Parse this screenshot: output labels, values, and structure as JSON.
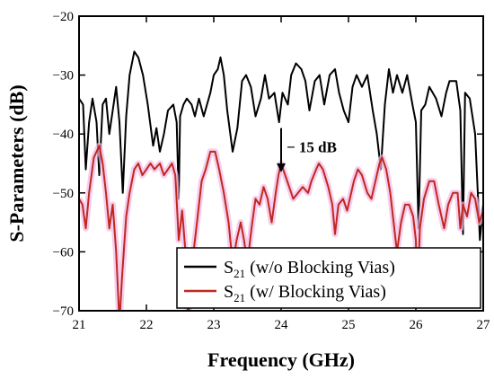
{
  "chart_data": {
    "type": "line",
    "xlabel": "Frequency (GHz)",
    "ylabel": "S-Parameters (dB)",
    "xlim": [
      21,
      27
    ],
    "ylim": [
      -70,
      -20
    ],
    "xticks": [
      21,
      22,
      23,
      24,
      25,
      26,
      27
    ],
    "yticks": [
      -70,
      -60,
      -50,
      -40,
      -30,
      -20
    ],
    "xtick_labels": [
      "21",
      "22",
      "23",
      "24",
      "25",
      "26",
      "27"
    ],
    "ytick_labels": [
      "−70",
      "−60",
      "−50",
      "−40",
      "−30",
      "−20"
    ],
    "grid": false,
    "legend_position": "bottom-right",
    "series": [
      {
        "name_main": "S",
        "name_sub": "21",
        "name_rest": " (w/o Blocking Vias)",
        "color": "#000000",
        "points": [
          [
            21.0,
            -34
          ],
          [
            21.06,
            -35
          ],
          [
            21.1,
            -46
          ],
          [
            21.15,
            -38
          ],
          [
            21.2,
            -34
          ],
          [
            21.26,
            -38
          ],
          [
            21.3,
            -47
          ],
          [
            21.35,
            -35
          ],
          [
            21.4,
            -34
          ],
          [
            21.45,
            -40
          ],
          [
            21.5,
            -36
          ],
          [
            21.55,
            -32
          ],
          [
            21.6,
            -38
          ],
          [
            21.65,
            -50
          ],
          [
            21.7,
            -37
          ],
          [
            21.75,
            -30
          ],
          [
            21.82,
            -26
          ],
          [
            21.88,
            -27
          ],
          [
            21.95,
            -30
          ],
          [
            22.02,
            -35
          ],
          [
            22.1,
            -42
          ],
          [
            22.15,
            -39
          ],
          [
            22.2,
            -43
          ],
          [
            22.26,
            -40
          ],
          [
            22.32,
            -36
          ],
          [
            22.4,
            -35
          ],
          [
            22.45,
            -38
          ],
          [
            22.48,
            -51
          ],
          [
            22.5,
            -37
          ],
          [
            22.55,
            -35
          ],
          [
            22.6,
            -34
          ],
          [
            22.67,
            -35
          ],
          [
            22.72,
            -37
          ],
          [
            22.78,
            -34
          ],
          [
            22.85,
            -37
          ],
          [
            22.9,
            -35
          ],
          [
            22.95,
            -33
          ],
          [
            23.0,
            -30
          ],
          [
            23.06,
            -29
          ],
          [
            23.1,
            -27
          ],
          [
            23.15,
            -30
          ],
          [
            23.2,
            -36
          ],
          [
            23.28,
            -43
          ],
          [
            23.35,
            -39
          ],
          [
            23.42,
            -31
          ],
          [
            23.48,
            -30
          ],
          [
            23.55,
            -32
          ],
          [
            23.62,
            -37
          ],
          [
            23.7,
            -34
          ],
          [
            23.76,
            -30
          ],
          [
            23.82,
            -34
          ],
          [
            23.9,
            -33
          ],
          [
            23.97,
            -38
          ],
          [
            24.02,
            -33
          ],
          [
            24.1,
            -35
          ],
          [
            24.15,
            -30
          ],
          [
            24.22,
            -28
          ],
          [
            24.3,
            -29
          ],
          [
            24.36,
            -31
          ],
          [
            24.42,
            -36
          ],
          [
            24.5,
            -31
          ],
          [
            24.57,
            -30
          ],
          [
            24.64,
            -35
          ],
          [
            24.72,
            -30
          ],
          [
            24.8,
            -29
          ],
          [
            24.86,
            -33
          ],
          [
            24.93,
            -36
          ],
          [
            25.0,
            -38
          ],
          [
            25.06,
            -32
          ],
          [
            25.12,
            -30
          ],
          [
            25.2,
            -32
          ],
          [
            25.28,
            -30
          ],
          [
            25.36,
            -36
          ],
          [
            25.42,
            -40
          ],
          [
            25.48,
            -46
          ],
          [
            25.54,
            -35
          ],
          [
            25.6,
            -29
          ],
          [
            25.66,
            -33
          ],
          [
            25.72,
            -30
          ],
          [
            25.8,
            -33
          ],
          [
            25.87,
            -30
          ],
          [
            25.95,
            -35
          ],
          [
            26.0,
            -38
          ],
          [
            26.04,
            -56
          ],
          [
            26.08,
            -36
          ],
          [
            26.14,
            -35
          ],
          [
            26.2,
            -32
          ],
          [
            26.3,
            -34
          ],
          [
            26.38,
            -37
          ],
          [
            26.45,
            -33
          ],
          [
            26.5,
            -31
          ],
          [
            26.6,
            -31
          ],
          [
            26.66,
            -36
          ],
          [
            26.7,
            -57
          ],
          [
            26.73,
            -33
          ],
          [
            26.8,
            -34
          ],
          [
            26.88,
            -40
          ],
          [
            26.95,
            -58
          ],
          [
            27.0,
            -52
          ]
        ]
      },
      {
        "name_main": "S",
        "name_sub": "21",
        "name_rest": " (w/ Blocking Vias)",
        "color": "#c0281e",
        "glow": "#f2b8e6",
        "points": [
          [
            21.0,
            -51
          ],
          [
            21.05,
            -52
          ],
          [
            21.1,
            -56
          ],
          [
            21.15,
            -50
          ],
          [
            21.22,
            -44
          ],
          [
            21.3,
            -42
          ],
          [
            21.35,
            -45
          ],
          [
            21.4,
            -50
          ],
          [
            21.45,
            -56
          ],
          [
            21.5,
            -52
          ],
          [
            21.55,
            -60
          ],
          [
            21.6,
            -72
          ],
          [
            21.64,
            -64
          ],
          [
            21.7,
            -54
          ],
          [
            21.75,
            -50
          ],
          [
            21.82,
            -46
          ],
          [
            21.88,
            -45
          ],
          [
            21.94,
            -47
          ],
          [
            22.0,
            -46
          ],
          [
            22.06,
            -45
          ],
          [
            22.12,
            -46
          ],
          [
            22.2,
            -45
          ],
          [
            22.26,
            -47
          ],
          [
            22.32,
            -46
          ],
          [
            22.38,
            -45
          ],
          [
            22.43,
            -47
          ],
          [
            22.48,
            -58
          ],
          [
            22.53,
            -53
          ],
          [
            22.58,
            -60
          ],
          [
            22.62,
            -72
          ],
          [
            22.68,
            -62
          ],
          [
            22.75,
            -55
          ],
          [
            22.82,
            -48
          ],
          [
            22.88,
            -46
          ],
          [
            22.95,
            -43
          ],
          [
            23.02,
            -43
          ],
          [
            23.08,
            -46
          ],
          [
            23.15,
            -50
          ],
          [
            23.22,
            -55
          ],
          [
            23.28,
            -62
          ],
          [
            23.34,
            -58
          ],
          [
            23.4,
            -55
          ],
          [
            23.45,
            -58
          ],
          [
            23.5,
            -62
          ],
          [
            23.56,
            -56
          ],
          [
            23.62,
            -51
          ],
          [
            23.68,
            -52
          ],
          [
            23.74,
            -49
          ],
          [
            23.8,
            -51
          ],
          [
            23.86,
            -55
          ],
          [
            23.92,
            -50
          ],
          [
            23.96,
            -47
          ],
          [
            24.0,
            -45
          ],
          [
            24.06,
            -47
          ],
          [
            24.12,
            -49
          ],
          [
            24.18,
            -51
          ],
          [
            24.25,
            -50
          ],
          [
            24.32,
            -49
          ],
          [
            24.4,
            -50
          ],
          [
            24.45,
            -48
          ],
          [
            24.52,
            -46
          ],
          [
            24.56,
            -45
          ],
          [
            24.62,
            -46
          ],
          [
            24.7,
            -49
          ],
          [
            24.76,
            -52
          ],
          [
            24.8,
            -57
          ],
          [
            24.85,
            -52
          ],
          [
            24.92,
            -51
          ],
          [
            24.98,
            -53
          ],
          [
            25.02,
            -51
          ],
          [
            25.08,
            -48
          ],
          [
            25.14,
            -46
          ],
          [
            25.2,
            -47
          ],
          [
            25.28,
            -50
          ],
          [
            25.34,
            -51
          ],
          [
            25.4,
            -48
          ],
          [
            25.46,
            -45
          ],
          [
            25.5,
            -44
          ],
          [
            25.56,
            -46
          ],
          [
            25.62,
            -50
          ],
          [
            25.68,
            -56
          ],
          [
            25.72,
            -60
          ],
          [
            25.78,
            -55
          ],
          [
            25.84,
            -52
          ],
          [
            25.9,
            -52
          ],
          [
            25.96,
            -54
          ],
          [
            26.0,
            -58
          ],
          [
            26.02,
            -68
          ],
          [
            26.06,
            -56
          ],
          [
            26.12,
            -51
          ],
          [
            26.2,
            -48
          ],
          [
            26.27,
            -48
          ],
          [
            26.34,
            -52
          ],
          [
            26.42,
            -56
          ],
          [
            26.48,
            -52
          ],
          [
            26.55,
            -50
          ],
          [
            26.62,
            -50
          ],
          [
            26.66,
            -56
          ],
          [
            26.7,
            -52
          ],
          [
            26.76,
            -54
          ],
          [
            26.82,
            -50
          ],
          [
            26.88,
            -51
          ],
          [
            26.94,
            -55
          ],
          [
            27.0,
            -53
          ]
        ]
      }
    ],
    "annotation": {
      "text": "− 15 dB",
      "arrow_x": 24.0,
      "arrow_y_from": -39,
      "arrow_y_to": -46.5
    }
  }
}
